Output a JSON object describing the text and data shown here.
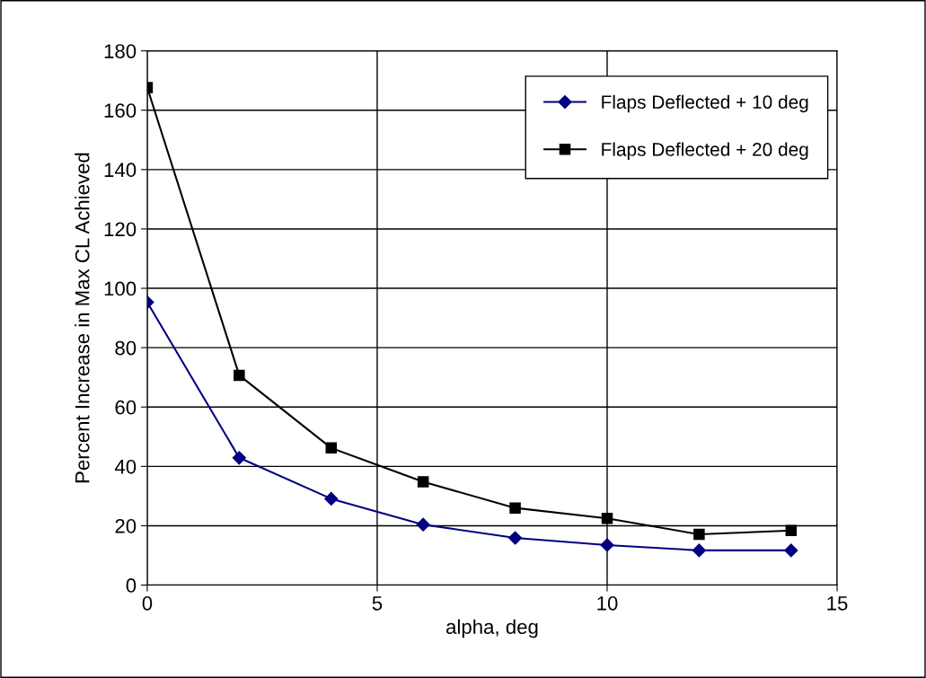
{
  "chart_data": {
    "type": "line",
    "xlabel": "alpha, deg",
    "ylabel": "Percent Increase in Max CL Achieved",
    "x": [
      0,
      2,
      4,
      6,
      8,
      10,
      12,
      14
    ],
    "series": [
      {
        "name": "Flaps Deflected + 10 deg",
        "color": "#000080",
        "marker": "diamond",
        "values": [
          95.3,
          42.9,
          29.1,
          20.4,
          15.9,
          13.5,
          11.7,
          11.7
        ]
      },
      {
        "name": "Flaps Deflected + 20 deg",
        "color": "#000000",
        "marker": "square",
        "values": [
          167.6,
          70.7,
          46.2,
          34.8,
          26.0,
          22.5,
          17.1,
          18.4
        ]
      }
    ],
    "xlim": [
      0,
      15
    ],
    "xticks": [
      0,
      5,
      10,
      15
    ],
    "ylim": [
      0,
      180
    ],
    "yticks": [
      0,
      20,
      40,
      60,
      80,
      100,
      120,
      140,
      160,
      180
    ],
    "grid": true,
    "legend": "top right",
    "line_style": "solid"
  }
}
